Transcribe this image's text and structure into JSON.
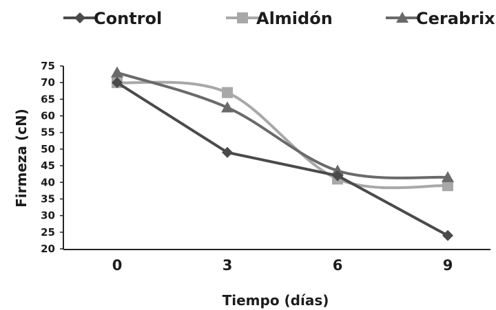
{
  "chart_data": {
    "type": "line",
    "title": "",
    "xlabel": "Tiempo (días)",
    "ylabel": "Firmeza (cN)",
    "categories": [
      "0",
      "3",
      "6",
      "9"
    ],
    "x": [
      0,
      3,
      6,
      9
    ],
    "ylim": [
      20,
      75
    ],
    "yticks": [
      20,
      25,
      30,
      35,
      40,
      45,
      50,
      55,
      60,
      65,
      70,
      75
    ],
    "grid": false,
    "legend": "top",
    "series": [
      {
        "name": "Control",
        "values": [
          70,
          49,
          42,
          24
        ],
        "color": "#4a4a4a",
        "marker": "diamond",
        "smooth": false
      },
      {
        "name": "Almidón",
        "values": [
          70,
          67,
          41,
          39
        ],
        "color": "#a8a8a8",
        "marker": "square",
        "smooth": true
      },
      {
        "name": "Cerabrix",
        "values": [
          73,
          62.5,
          43.5,
          41.5
        ],
        "color": "#6a6a6a",
        "marker": "triangle",
        "smooth": true
      }
    ]
  }
}
